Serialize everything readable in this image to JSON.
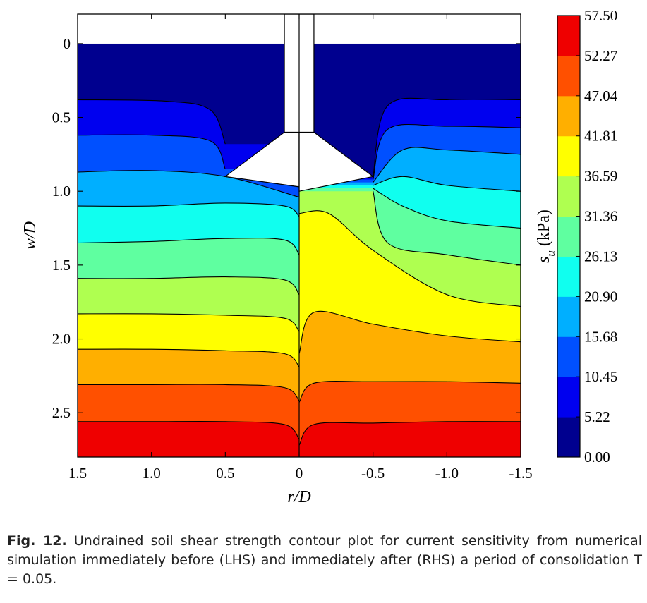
{
  "chart_data": {
    "type": "heatmap",
    "xlabel": "r/D",
    "ylabel": "w/D",
    "xlim": [
      1.5,
      -1.5
    ],
    "ylim": [
      -0.2,
      2.8
    ],
    "x_ticks": [
      1.5,
      1.0,
      0.5,
      0,
      -0.5,
      -1.0,
      -1.5
    ],
    "x_tick_labels": [
      "1.5",
      "1.0",
      "0.5",
      "0",
      "-0.5",
      "-1.0",
      "-1.5"
    ],
    "y_ticks": [
      0,
      0.5,
      1.0,
      1.5,
      2.0,
      2.5
    ],
    "y_tick_labels": [
      "0",
      "0.5",
      "1.0",
      "1.5",
      "2.0",
      "2.5"
    ],
    "y_inverted": true,
    "colorbar": {
      "label": "s",
      "label_sub": "u",
      "label_unit": "(kPa)",
      "levels": [
        0.0,
        5.22,
        10.45,
        15.68,
        20.9,
        26.13,
        31.36,
        36.59,
        41.81,
        47.04,
        52.27,
        57.5
      ],
      "level_labels": [
        "0.00",
        "5.22",
        "10.45",
        "15.68",
        "20.90",
        "26.13",
        "31.36",
        "36.59",
        "41.81",
        "47.04",
        "52.27",
        "57.50"
      ],
      "colors": [
        "#00008f",
        "#0000ef",
        "#0050ff",
        "#00afff",
        "#10ffef",
        "#5fffa0",
        "#afff50",
        "#ffff00",
        "#ffaf00",
        "#ff5000",
        "#ef0000"
      ]
    },
    "contour_lines": {
      "left_hand_side": [
        {
          "level": 5.22,
          "x": [
            1.5,
            0.9,
            0.6,
            0.5
          ],
          "w": [
            0.38,
            0.39,
            0.45,
            0.68
          ]
        },
        {
          "level": 10.45,
          "x": [
            1.5,
            1.0,
            0.6,
            0.5
          ],
          "w": [
            0.62,
            0.62,
            0.66,
            0.85
          ]
        },
        {
          "level": 15.68,
          "x": [
            1.5,
            1.0,
            0.5,
            0.0
          ],
          "w": [
            0.87,
            0.86,
            0.9,
            1.04
          ]
        },
        {
          "level": 20.9,
          "x": [
            1.5,
            1.0,
            0.5,
            0.1,
            0.0
          ],
          "w": [
            1.1,
            1.1,
            1.08,
            1.1,
            1.17
          ]
        },
        {
          "level": 26.13,
          "x": [
            1.5,
            1.0,
            0.5,
            0.1,
            0.0
          ],
          "w": [
            1.35,
            1.34,
            1.32,
            1.33,
            1.43
          ]
        },
        {
          "level": 31.36,
          "x": [
            1.5,
            1.0,
            0.5,
            0.1,
            0.0
          ],
          "w": [
            1.59,
            1.59,
            1.58,
            1.6,
            1.7
          ]
        },
        {
          "level": 36.59,
          "x": [
            1.5,
            1.0,
            0.5,
            0.1,
            0.0
          ],
          "w": [
            1.83,
            1.83,
            1.84,
            1.86,
            1.95
          ]
        },
        {
          "level": 41.81,
          "x": [
            1.5,
            1.0,
            0.5,
            0.1,
            0.0
          ],
          "w": [
            2.07,
            2.07,
            2.08,
            2.1,
            2.19
          ]
        },
        {
          "level": 47.04,
          "x": [
            1.5,
            1.0,
            0.5,
            0.1,
            0.0
          ],
          "w": [
            2.31,
            2.31,
            2.31,
            2.33,
            2.42
          ]
        },
        {
          "level": 52.27,
          "x": [
            1.5,
            1.0,
            0.5,
            0.1,
            0.0
          ],
          "w": [
            2.56,
            2.56,
            2.56,
            2.58,
            2.68
          ]
        }
      ],
      "right_hand_side": [
        {
          "level": 5.22,
          "x": [
            -1.5,
            -1.0,
            -0.6,
            -0.5
          ],
          "w": [
            0.38,
            0.38,
            0.42,
            0.9
          ]
        },
        {
          "level": 10.45,
          "x": [
            -1.5,
            -1.0,
            -0.6,
            -0.5
          ],
          "w": [
            0.57,
            0.56,
            0.58,
            0.92
          ]
        },
        {
          "level": 15.68,
          "x": [
            -1.5,
            -1.0,
            -0.7,
            -0.5
          ],
          "w": [
            0.75,
            0.72,
            0.72,
            0.94
          ]
        },
        {
          "level": 20.9,
          "x": [
            -1.5,
            -1.0,
            -0.7,
            -0.5
          ],
          "w": [
            1.0,
            0.96,
            0.9,
            0.96
          ]
        },
        {
          "level": 26.13,
          "x": [
            -1.5,
            -1.0,
            -0.7,
            -0.5
          ],
          "w": [
            1.25,
            1.2,
            1.1,
            0.98
          ]
        },
        {
          "level": 31.36,
          "x": [
            -1.5,
            -1.0,
            -0.6,
            -0.5
          ],
          "w": [
            1.5,
            1.43,
            1.35,
            1.0
          ]
        },
        {
          "level": 36.59,
          "x": [
            -1.5,
            -1.0,
            -0.5,
            -0.2,
            0.0
          ],
          "w": [
            1.78,
            1.7,
            1.4,
            1.15,
            1.15
          ]
        },
        {
          "level": 41.81,
          "x": [
            -1.5,
            -1.0,
            -0.5,
            -0.1,
            0.0
          ],
          "w": [
            2.02,
            1.98,
            1.9,
            1.82,
            2.1
          ]
        },
        {
          "level": 47.04,
          "x": [
            -1.5,
            -1.0,
            -0.5,
            -0.1,
            0.0
          ],
          "w": [
            2.3,
            2.29,
            2.29,
            2.3,
            2.43
          ]
        },
        {
          "level": 52.27,
          "x": [
            -1.5,
            -1.0,
            -0.5,
            -0.1,
            0.0
          ],
          "w": [
            2.56,
            2.56,
            2.57,
            2.58,
            2.72
          ]
        }
      ]
    },
    "anchor": {
      "shaft_halfwidth": 0.1,
      "fluke_tip_r": 0.5,
      "fluke_tip_w": 0.9,
      "lhs_tip_w": 0.97,
      "rhs_tip_w": 1.0
    }
  },
  "caption": {
    "label": "Fig. 12.",
    "text": "Undrained soil shear strength contour plot for current sensitivity from numerical simulation immediately before (LHS) and immediately after (RHS) a period of consolidation T = 0.05."
  }
}
